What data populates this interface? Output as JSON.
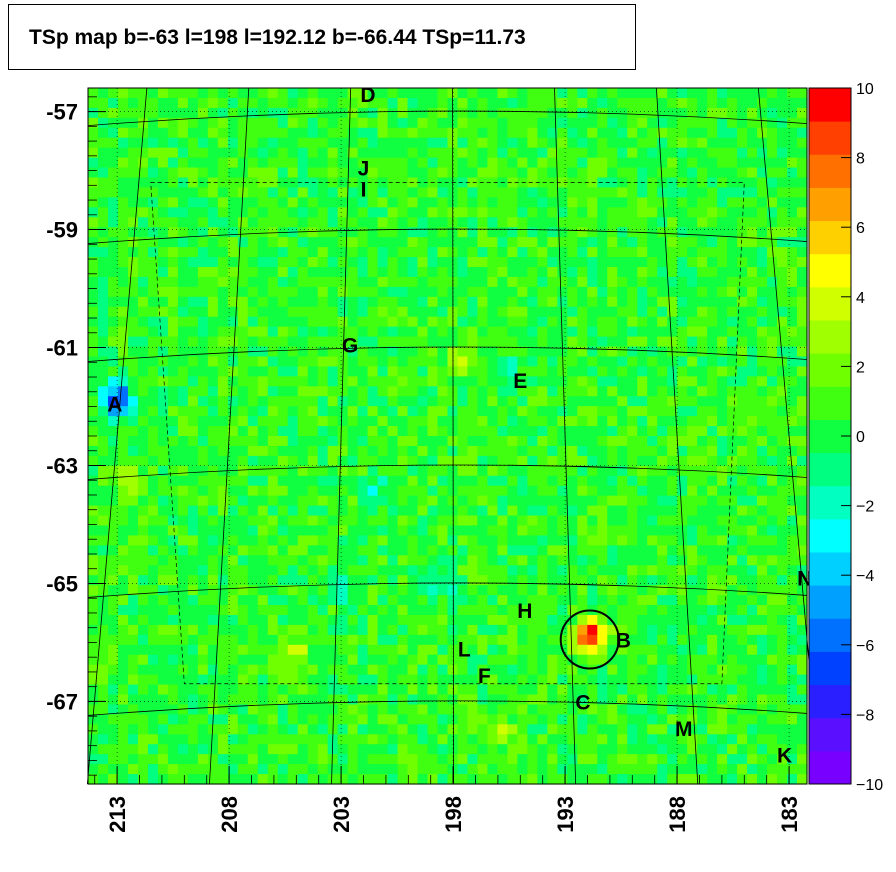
{
  "title": "TSp map b=-63 l=198 l=192.12 b=-66.44 TSp=11.73",
  "chart_data": {
    "type": "heatmap",
    "title": "TSp map b=-63 l=198 l=192.12 b=-66.44 TSp=11.73",
    "xlabel": "",
    "ylabel": "",
    "x_ticks": [
      "213",
      "208",
      "203",
      "198",
      "193",
      "188",
      "183"
    ],
    "x_tick_values": [
      213,
      208,
      203,
      198,
      193,
      188,
      183
    ],
    "y_ticks": [
      "-57",
      "-59",
      "-61",
      "-63",
      "-65",
      "-67"
    ],
    "y_tick_values": [
      -57,
      -59,
      -61,
      -63,
      -65,
      -67
    ],
    "xlim": [
      214.3,
      182.2
    ],
    "ylim": [
      -68.4,
      -56.6
    ],
    "colorbar": {
      "range": [
        -10,
        10
      ],
      "ticks": [
        "10",
        "8",
        "6",
        "4",
        "2",
        "0",
        "−2",
        "−4",
        "−6",
        "−8",
        "−10"
      ],
      "tick_values": [
        10,
        8,
        6,
        4,
        2,
        0,
        -2,
        -4,
        -6,
        -8,
        -10
      ],
      "colors": [
        "#7800ff",
        "#5a10ff",
        "#2a20ff",
        "#0040ff",
        "#0070ff",
        "#00a0ff",
        "#00d0ff",
        "#00ffff",
        "#00ffc0",
        "#00ff80",
        "#10ff40",
        "#40ff10",
        "#70ff00",
        "#a0ff00",
        "#d0ff00",
        "#ffff00",
        "#ffd000",
        "#ffa000",
        "#ff7000",
        "#ff4000",
        "#ff0000"
      ]
    },
    "background_ts": 0.5,
    "hotspots": [
      {
        "l": 191.9,
        "b": -65.9,
        "ts": 10
      },
      {
        "l": 213.0,
        "b": -61.9,
        "ts": -7
      },
      {
        "l": 195.5,
        "b": -61.4,
        "ts": -2
      },
      {
        "l": 201.5,
        "b": -63.5,
        "ts": -2
      },
      {
        "l": 203.0,
        "b": -65.0,
        "ts": -2.5
      },
      {
        "l": 198.5,
        "b": -65.0,
        "ts": -2
      },
      {
        "l": 197.5,
        "b": -61.2,
        "ts": 3
      },
      {
        "l": 195.8,
        "b": -67.5,
        "ts": 3
      },
      {
        "l": 212.5,
        "b": -63.3,
        "ts": 3
      },
      {
        "l": 205.0,
        "b": -66.2,
        "ts": 3
      }
    ],
    "source_circle": {
      "l": 191.9,
      "b": -65.95,
      "radius_deg": 0.5
    },
    "labels": [
      {
        "text": "A",
        "l": 213.1,
        "b": -61.95
      },
      {
        "text": "B",
        "l": 190.4,
        "b": -65.95
      },
      {
        "text": "C",
        "l": 192.2,
        "b": -67.0
      },
      {
        "text": "D",
        "l": 201.8,
        "b": -56.7
      },
      {
        "text": "E",
        "l": 195.0,
        "b": -61.55
      },
      {
        "text": "F",
        "l": 196.6,
        "b": -66.55
      },
      {
        "text": "G",
        "l": 202.6,
        "b": -60.95
      },
      {
        "text": "H",
        "l": 194.8,
        "b": -65.45
      },
      {
        "text": "I",
        "l": 202.0,
        "b": -58.3
      },
      {
        "text": "J",
        "l": 202.0,
        "b": -57.95
      },
      {
        "text": "K",
        "l": 183.2,
        "b": -67.9
      },
      {
        "text": "L",
        "l": 197.5,
        "b": -66.1
      },
      {
        "text": "M",
        "l": 187.7,
        "b": -67.45
      },
      {
        "text": "N",
        "l": 182.3,
        "b": -64.9
      }
    ]
  }
}
